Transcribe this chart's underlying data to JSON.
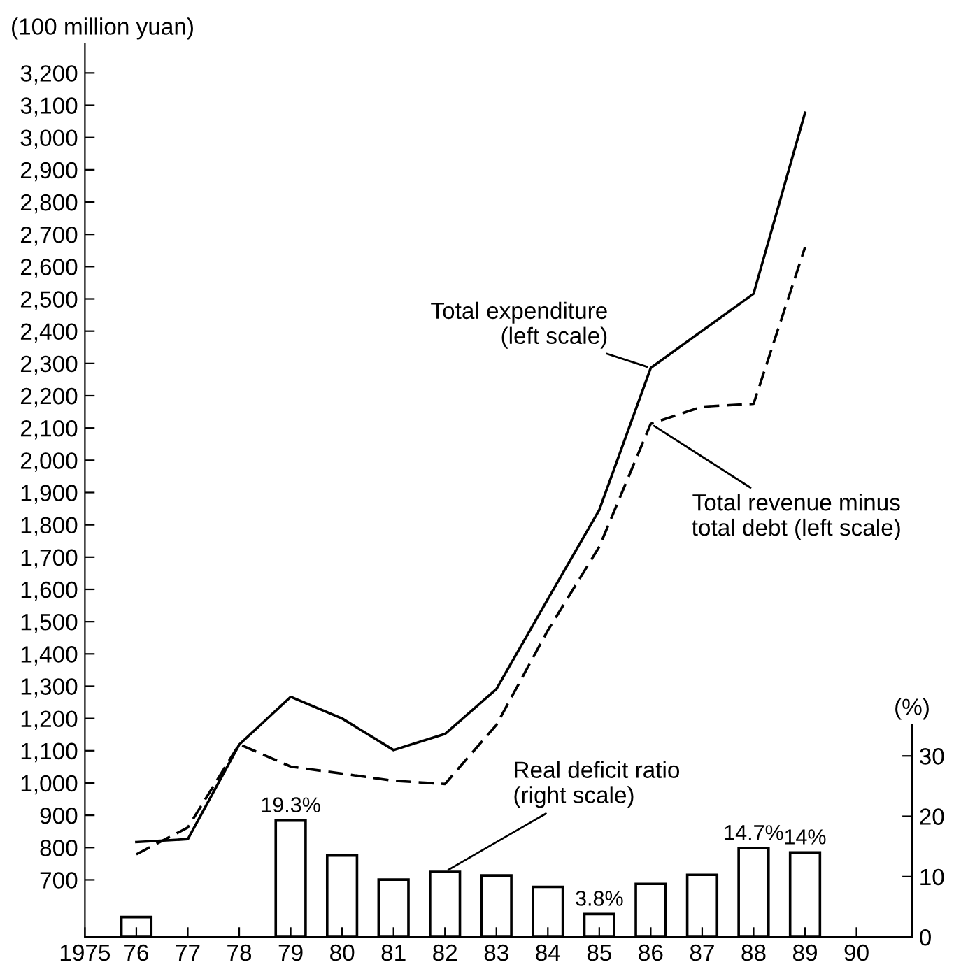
{
  "chart_data": {
    "type": "line",
    "xlabel": null,
    "ylabel": "(100 million yuan)",
    "y2label": "(%)",
    "categories": [
      "1975",
      "76",
      "77",
      "78",
      "79",
      "80",
      "81",
      "82",
      "83",
      "84",
      "85",
      "86",
      "87",
      "88",
      "89",
      "90"
    ],
    "series": [
      {
        "name": "Total expenditure\n(left scale)",
        "line_style": "solid",
        "color": "#000000",
        "values": [
          null,
          817,
          826,
          1119,
          1267,
          1200,
          1102,
          1152,
          1291,
          1570,
          1846,
          2286,
          null,
          2516,
          3077,
          null
        ]
      },
      {
        "name": "Total revenue minus\ntotal debt (left scale)",
        "line_style": "dashed",
        "color": "#000000",
        "values": [
          null,
          779,
          862,
          1120,
          1051,
          1029,
          1007,
          997,
          1180,
          1473,
          1732,
          2113,
          2166,
          2175,
          2660,
          null
        ]
      },
      {
        "name": "Real deficit ratio\n(right scale)",
        "type": "bar",
        "axis": "y2",
        "color": "#ffffff",
        "values": [
          null,
          3.3,
          null,
          null,
          19.3,
          13.5,
          9.5,
          10.8,
          10.2,
          8.3,
          3.8,
          8.8,
          10.3,
          14.7,
          14,
          null
        ],
        "value_labels": [
          null,
          null,
          null,
          null,
          "19.3%",
          null,
          null,
          null,
          null,
          null,
          "3.8%",
          null,
          null,
          "14.7%",
          "14%",
          null
        ]
      }
    ],
    "ylim": [
      523,
      3290
    ],
    "yticks": [
      {
        "value": 700,
        "label": "700"
      },
      {
        "value": 800,
        "label": "800"
      },
      {
        "value": 900,
        "label": "900"
      },
      {
        "value": 1000,
        "label": "1,000"
      },
      {
        "value": 1100,
        "label": "1,100"
      },
      {
        "value": 1200,
        "label": "1,200"
      },
      {
        "value": 1300,
        "label": "1,300"
      },
      {
        "value": 1400,
        "label": "1,400"
      },
      {
        "value": 1500,
        "label": "1,500"
      },
      {
        "value": 1600,
        "label": "1,600"
      },
      {
        "value": 1700,
        "label": "1,700"
      },
      {
        "value": 1800,
        "label": "1,800"
      },
      {
        "value": 1900,
        "label": "1,900"
      },
      {
        "value": 2000,
        "label": "2,000"
      },
      {
        "value": 2100,
        "label": "2,100"
      },
      {
        "value": 2200,
        "label": "2,200"
      },
      {
        "value": 2300,
        "label": "2,300"
      },
      {
        "value": 2400,
        "label": "2,400"
      },
      {
        "value": 2500,
        "label": "2,500"
      },
      {
        "value": 2600,
        "label": "2,600"
      },
      {
        "value": 2700,
        "label": "2,700"
      },
      {
        "value": 2800,
        "label": "2,800"
      },
      {
        "value": 2900,
        "label": "2,900"
      },
      {
        "value": 3000,
        "label": "3,000"
      },
      {
        "value": 3100,
        "label": "3,100"
      },
      {
        "value": 3200,
        "label": "3,200"
      }
    ],
    "y2lim": [
      0,
      148
    ],
    "y2ticks": [
      0,
      10,
      20,
      30
    ],
    "grid": false,
    "legend": false
  }
}
